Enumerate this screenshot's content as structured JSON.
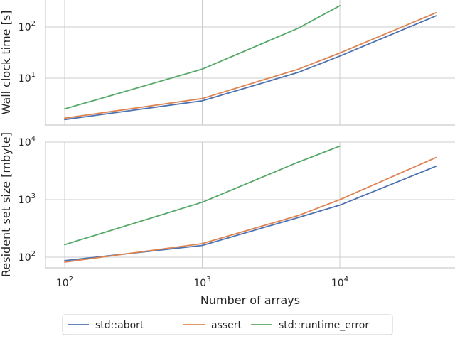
{
  "chart_data": {
    "type": "line",
    "xlabel": "Number of arrays",
    "x_scale": "log",
    "x_ticks": [
      {
        "base": "10",
        "exp": "2"
      },
      {
        "base": "10",
        "exp": "3"
      },
      {
        "base": "10",
        "exp": "4"
      }
    ],
    "legend_placement": "bottom-center",
    "grid": true,
    "colors": {
      "std::abort": "#4c72b0",
      "assert": "#dd8452",
      "std::runtime_error": "#55a868"
    },
    "panels": [
      {
        "ylabel": "Wall clock time [s]",
        "y_scale": "log",
        "y_ticks": [
          {
            "base": "10",
            "exp": "1"
          },
          {
            "base": "10",
            "exp": "2"
          }
        ],
        "series": [
          {
            "name": "std::abort",
            "x": [
              100,
              1000,
              5000,
              10000,
              50000
            ],
            "y": [
              1.55,
              3.6,
              13.0,
              27.0,
              165.0
            ]
          },
          {
            "name": "assert",
            "x": [
              100,
              1000,
              5000,
              10000,
              50000
            ],
            "y": [
              1.65,
              4.0,
              15.0,
              31.0,
              190.0
            ]
          },
          {
            "name": "std::runtime_error",
            "x": [
              100,
              1000,
              5000,
              10000
            ],
            "y": [
              2.5,
              15.0,
              95.0,
              260.0
            ]
          }
        ]
      },
      {
        "ylabel": "Resident set size [mbyte]",
        "y_scale": "log",
        "y_ticks": [
          {
            "base": "10",
            "exp": "2"
          },
          {
            "base": "10",
            "exp": "3"
          },
          {
            "base": "10",
            "exp": "4"
          }
        ],
        "series": [
          {
            "name": "std::abort",
            "x": [
              100,
              1000,
              5000,
              10000,
              50000
            ],
            "y": [
              87,
              160,
              490,
              800,
              3800
            ]
          },
          {
            "name": "assert",
            "x": [
              100,
              1000,
              5000,
              10000,
              50000
            ],
            "y": [
              82,
              172,
              530,
              1000,
              5400
            ]
          },
          {
            "name": "std::runtime_error",
            "x": [
              100,
              1000,
              5000,
              10000
            ],
            "y": [
              165,
              900,
              4500,
              8500
            ]
          }
        ]
      }
    ]
  }
}
